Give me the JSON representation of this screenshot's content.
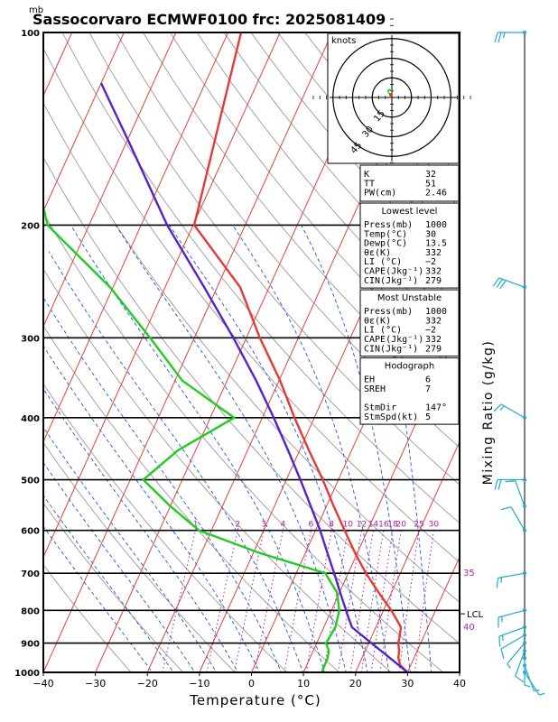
{
  "title": "Sassocorvaro ECMWF0100 frc: 2025081409",
  "pressure_unit": "mb",
  "colors": {
    "temperature": "#e53935",
    "dewpoint": "#22cc22",
    "parcel": "#5522cc",
    "isotherms": "#e0453a",
    "dry_adiabats": "#9a9a9a",
    "moist_adiabats": "#2255dd",
    "mixing_ratio": "#aa22aa",
    "wind": "#22aacc"
  },
  "chart_data": {
    "type": "line",
    "title": "Sassocorvaro ECMWF0100 frc: 2025081409",
    "xlabel": "Temperature (°C)",
    "ylabel": "Mixing Ratio (g/kg)",
    "x_ticks": [
      -40,
      -30,
      -20,
      -10,
      0,
      10,
      20,
      30,
      40
    ],
    "x_tick_labels": [
      "−40",
      "−30",
      "−20",
      "−10",
      "0",
      "10",
      "20",
      "30",
      "40"
    ],
    "xlim": [
      -40,
      40
    ],
    "pressure_levels": [
      1000,
      900,
      800,
      700,
      600,
      500,
      400,
      300,
      200,
      100
    ],
    "pressure_labels": [
      "1000",
      "900",
      "800",
      "700",
      "600",
      "500",
      "400",
      "300",
      "200",
      "100"
    ],
    "ylim_mb": [
      1000,
      100
    ],
    "y_scale": "log",
    "skew_deg_per_log": 55.5,
    "mixing_ratio_lines": [
      {
        "w": 1,
        "label": "1"
      },
      {
        "w": 2,
        "label": "2"
      },
      {
        "w": 3,
        "label": "3"
      },
      {
        "w": 4,
        "label": "4"
      },
      {
        "w": 6,
        "label": "6"
      },
      {
        "w": 8,
        "label": "8"
      },
      {
        "w": 10,
        "label": "10"
      },
      {
        "w": 12,
        "label": "12"
      },
      {
        "w": 14,
        "label": "14"
      },
      {
        "w": 16,
        "label": "16"
      },
      {
        "w": 18,
        "label": "18"
      },
      {
        "w": 20,
        "label": "20"
      },
      {
        "w": 25,
        "label": "25"
      },
      {
        "w": 30,
        "label": "30"
      }
    ],
    "theta_e_labels": [
      {
        "label": "35",
        "p": 700
      },
      {
        "label": "40",
        "p": 850
      }
    ],
    "series": [
      {
        "name": "Temperature",
        "color": "#e53935",
        "points": [
          [
            1000,
            30
          ],
          [
            975,
            28
          ],
          [
            950,
            27
          ],
          [
            925,
            26.5
          ],
          [
            900,
            25.7
          ],
          [
            875,
            25.3
          ],
          [
            850,
            24.8
          ],
          [
            825,
            23.2
          ],
          [
            800,
            21.5
          ],
          [
            750,
            17.5
          ],
          [
            700,
            13.4
          ],
          [
            650,
            9.5
          ],
          [
            600,
            5.6
          ],
          [
            550,
            1.4
          ],
          [
            500,
            -3
          ],
          [
            450,
            -8.2
          ],
          [
            400,
            -13.8
          ],
          [
            350,
            -19.8
          ],
          [
            300,
            -27.4
          ],
          [
            250,
            -35.6
          ],
          [
            200,
            -49.8
          ],
          [
            100,
            -57.5
          ]
        ]
      },
      {
        "name": "Dewpoint",
        "color": "#22cc22",
        "points": [
          [
            1000,
            13.5
          ],
          [
            950,
            13.4
          ],
          [
            925,
            13
          ],
          [
            900,
            11.8
          ],
          [
            875,
            12
          ],
          [
            850,
            12.2
          ],
          [
            800,
            11.5
          ],
          [
            750,
            9.5
          ],
          [
            700,
            5.6
          ],
          [
            650,
            -9
          ],
          [
            600,
            -22.4
          ],
          [
            550,
            -30
          ],
          [
            500,
            -37.5
          ],
          [
            450,
            -33.4
          ],
          [
            400,
            -25.4
          ],
          [
            350,
            -38.6
          ],
          [
            300,
            -48.5
          ],
          [
            250,
            -60.6
          ],
          [
            200,
            -78
          ],
          [
            100,
            -103
          ]
        ]
      },
      {
        "name": "Parcel",
        "color": "#5522cc",
        "points": [
          [
            1000,
            30
          ],
          [
            950,
            25.4
          ],
          [
            900,
            20.5
          ],
          [
            850,
            15.4
          ],
          [
            810,
            13.3
          ],
          [
            800,
            12.8
          ],
          [
            750,
            10.1
          ],
          [
            700,
            7.3
          ],
          [
            650,
            4.2
          ],
          [
            600,
            0.9
          ],
          [
            550,
            -3
          ],
          [
            500,
            -7.3
          ],
          [
            450,
            -12.2
          ],
          [
            400,
            -17.8
          ],
          [
            350,
            -24.4
          ],
          [
            300,
            -32.5
          ],
          [
            250,
            -42.5
          ],
          [
            200,
            -55
          ],
          [
            150,
            -69
          ],
          [
            120,
            -80
          ]
        ]
      }
    ],
    "lcl": {
      "label": "LCL",
      "p": 810
    },
    "wind_barbs": [
      {
        "p": 1000,
        "dir": 147,
        "kt": 5
      },
      {
        "p": 975,
        "dir": 160,
        "kt": 6
      },
      {
        "p": 950,
        "dir": 180,
        "kt": 8
      },
      {
        "p": 925,
        "dir": 200,
        "kt": 10
      },
      {
        "p": 900,
        "dir": 220,
        "kt": 8
      },
      {
        "p": 875,
        "dir": 240,
        "kt": 10
      },
      {
        "p": 850,
        "dir": 250,
        "kt": 15
      },
      {
        "p": 800,
        "dir": 255,
        "kt": 15
      },
      {
        "p": 700,
        "dir": 260,
        "kt": 15
      },
      {
        "p": 600,
        "dir": 330,
        "kt": 10
      },
      {
        "p": 550,
        "dir": 340,
        "kt": 10
      },
      {
        "p": 500,
        "dir": 270,
        "kt": 20
      },
      {
        "p": 400,
        "dir": 300,
        "kt": 15
      },
      {
        "p": 250,
        "dir": 290,
        "kt": 30
      },
      {
        "p": 100,
        "dir": 270,
        "kt": 25
      }
    ]
  },
  "hodograph": {
    "unit_label": "knots",
    "ring_labels": [
      "15",
      "30",
      "45"
    ],
    "trace": [
      [
        0,
        5
      ],
      [
        -2,
        6
      ],
      [
        -3,
        5
      ],
      [
        -2,
        3
      ],
      [
        -1,
        2
      ]
    ]
  },
  "indices": {
    "summary": [
      {
        "label": "K",
        "value": "32"
      },
      {
        "label": "TT",
        "value": "51"
      },
      {
        "label": "PW(cm)",
        "value": "2.46"
      }
    ],
    "lowest": {
      "header": "Lowest level",
      "rows": [
        {
          "label": "Press(mb)",
          "value": "1000"
        },
        {
          "label": "Temp(°C)",
          "value": "30"
        },
        {
          "label": "Dewp(°C)",
          "value": "13.5"
        },
        {
          "label": "θε(K)",
          "value": "332"
        },
        {
          "label": "LI (°C)",
          "value": "−2"
        },
        {
          "label": "CAPE(Jkg⁻¹)",
          "value": "332"
        },
        {
          "label": "CIN(Jkg⁻¹)",
          "value": "279"
        }
      ]
    },
    "unstable": {
      "header": "Most Unstable",
      "rows": [
        {
          "label": "Press(mb)",
          "value": "1000"
        },
        {
          "label": "θε(K)",
          "value": "332"
        },
        {
          "label": "LI (°C)",
          "value": "−2"
        },
        {
          "label": "CAPE(Jkg⁻¹)",
          "value": "332"
        },
        {
          "label": "CIN(Jkg⁻¹)",
          "value": "279"
        }
      ]
    },
    "hodo": {
      "header": "Hodograph",
      "rows": [
        {
          "label": "EH",
          "value": "6"
        },
        {
          "label": "SREH",
          "value": "7"
        },
        {
          "label": "",
          "value": ""
        },
        {
          "label": "StmDir",
          "value": "147°"
        },
        {
          "label": "StmSpd(kt)",
          "value": "5"
        }
      ]
    }
  }
}
